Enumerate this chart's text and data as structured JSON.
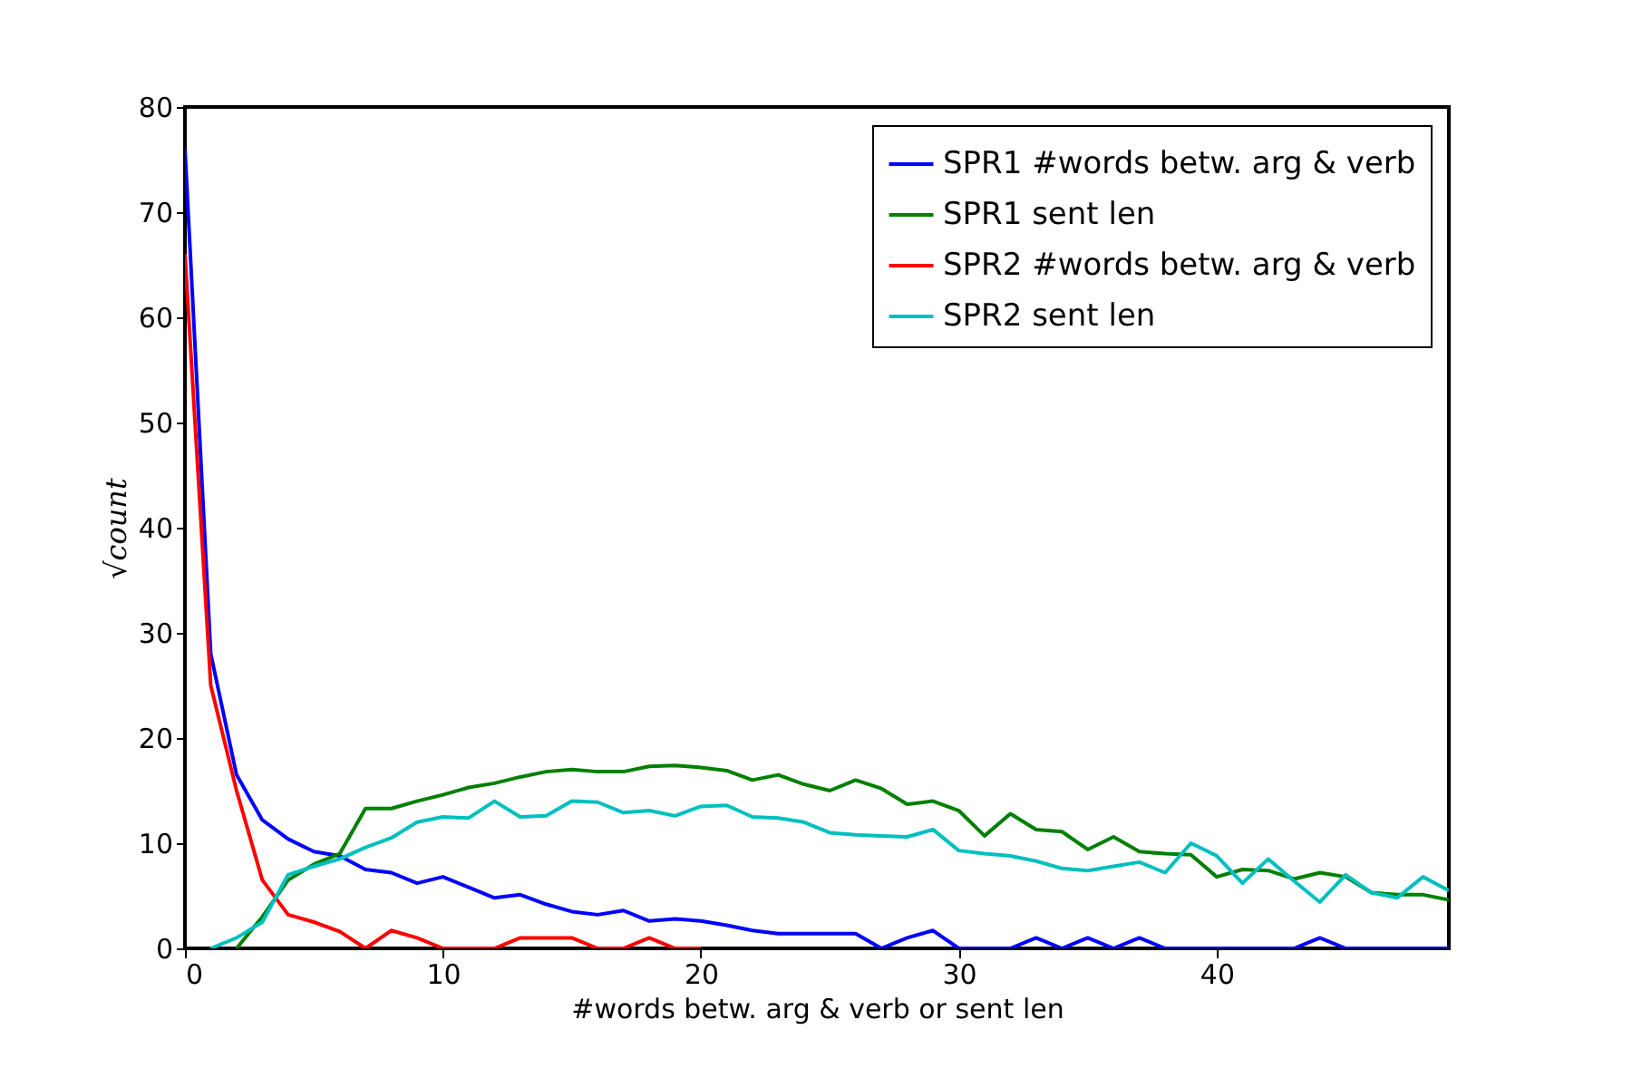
{
  "chart_data": {
    "type": "line",
    "xlabel": "#words betw. arg & verb or sent len",
    "ylabel": "√count",
    "xlim": [
      0,
      49
    ],
    "xticks": [
      0,
      10,
      20,
      30,
      40
    ],
    "ylim": [
      0,
      80
    ],
    "yticks": [
      0,
      10,
      20,
      30,
      40,
      50,
      60,
      70,
      80
    ],
    "grid": false,
    "legend": "top right",
    "marker": "none",
    "line_style": "solid",
    "series": [
      {
        "name": "SPR1 #words betw. arg & verb",
        "color": "#0000ff",
        "x": [
          0,
          1,
          2,
          3,
          4,
          5,
          6,
          7,
          8,
          9,
          10,
          11,
          12,
          13,
          14,
          15,
          16,
          17,
          18,
          19,
          20,
          21,
          22,
          23,
          24,
          25,
          26,
          27,
          28,
          29,
          30,
          31,
          32,
          33,
          34,
          35,
          36,
          37,
          38,
          39,
          40,
          41,
          42,
          43,
          44,
          45,
          46,
          47,
          48,
          49
        ],
        "values": [
          76,
          28,
          16.5,
          12.2,
          10.4,
          9.2,
          8.8,
          7.5,
          7.2,
          6.2,
          6.8,
          5.8,
          4.8,
          5.1,
          4.2,
          3.5,
          3.2,
          3.6,
          2.6,
          2.8,
          2.6,
          2.2,
          1.7,
          1.4,
          1.4,
          1.4,
          1.4,
          0,
          1,
          1.7,
          0,
          0,
          0,
          1,
          0,
          1,
          0,
          1,
          0,
          0,
          0,
          0,
          0,
          0,
          1,
          0,
          0,
          0,
          0,
          0
        ]
      },
      {
        "name": "SPR1 sent len",
        "color": "#008000",
        "x": [
          2,
          3,
          4,
          5,
          6,
          7,
          8,
          9,
          10,
          11,
          12,
          13,
          14,
          15,
          16,
          17,
          18,
          19,
          20,
          21,
          22,
          23,
          24,
          25,
          26,
          27,
          28,
          29,
          30,
          31,
          32,
          33,
          34,
          35,
          36,
          37,
          38,
          39,
          40,
          41,
          42,
          43,
          44,
          45,
          46,
          47,
          48,
          49
        ],
        "values": [
          0,
          3,
          6.5,
          8,
          9,
          13.3,
          13.3,
          14,
          14.6,
          15.3,
          15.7,
          16.3,
          16.8,
          17,
          16.8,
          16.8,
          17.3,
          17.4,
          17.2,
          16.9,
          16,
          16.5,
          15.6,
          15,
          16,
          15.2,
          13.7,
          14,
          13.1,
          10.7,
          12.8,
          11.3,
          11.1,
          9.4,
          10.6,
          9.2,
          9,
          8.9,
          6.8,
          7.5,
          7.4,
          6.6,
          7.2,
          6.8,
          5.3,
          5.1,
          5.1,
          4.6
        ]
      },
      {
        "name": "SPR2 #words betw. arg & verb",
        "color": "#ff0000",
        "x": [
          0,
          1,
          2,
          3,
          4,
          5,
          6,
          7,
          8,
          9,
          10,
          11,
          12,
          13,
          14,
          15,
          16,
          17,
          18,
          19,
          20
        ],
        "values": [
          66,
          25,
          15,
          6.5,
          3.2,
          2.5,
          1.6,
          0,
          1.7,
          1,
          0,
          0,
          0,
          1,
          1,
          1,
          0,
          0,
          1,
          0,
          0
        ]
      },
      {
        "name": "SPR2 sent len",
        "color": "#00bfbf",
        "x": [
          1,
          2,
          3,
          4,
          5,
          6,
          7,
          8,
          9,
          10,
          11,
          12,
          13,
          14,
          15,
          16,
          17,
          18,
          19,
          20,
          21,
          22,
          23,
          24,
          25,
          26,
          27,
          28,
          29,
          30,
          31,
          32,
          33,
          34,
          35,
          36,
          37,
          38,
          39,
          40,
          41,
          42,
          43,
          44,
          45,
          46,
          47,
          48,
          49
        ],
        "values": [
          0,
          1,
          2.5,
          7,
          7.8,
          8.5,
          9.6,
          10.5,
          12,
          12.5,
          12.4,
          14,
          12.5,
          12.6,
          14,
          13.9,
          12.9,
          13.1,
          12.6,
          13.5,
          13.6,
          12.5,
          12.4,
          12,
          11,
          10.8,
          10.7,
          10.6,
          11.3,
          9.3,
          9,
          8.8,
          8.3,
          7.6,
          7.4,
          7.8,
          8.2,
          7.2,
          10,
          8.8,
          6.2,
          8.5,
          6.4,
          4.4,
          7,
          5.3,
          4.8,
          6.8,
          5.5
        ]
      }
    ]
  }
}
